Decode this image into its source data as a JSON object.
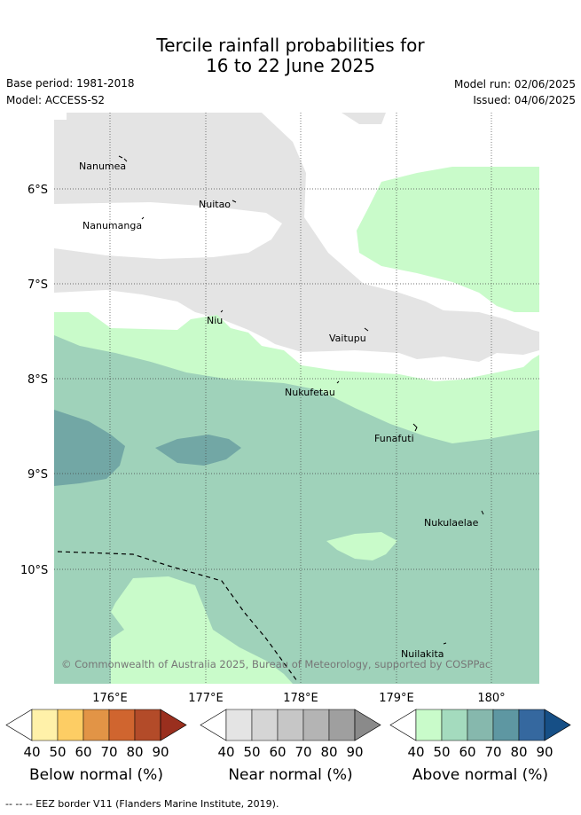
{
  "header": {
    "title_line1": "Tercile rainfall probabilities for",
    "title_line2": "16 to 22 June 2025",
    "base_period": "Base period: 1981-2018",
    "model": "Model: ACCESS-S2",
    "model_run": "Model run: 02/06/2025",
    "issued": "Issued: 04/06/2025"
  },
  "map": {
    "lat_labels": [
      "6°S",
      "7°S",
      "8°S",
      "9°S",
      "10°S"
    ],
    "lon_labels": [
      "176°E",
      "177°E",
      "178°E",
      "179°E",
      "180°"
    ],
    "places": [
      "Nanumea",
      "Nuitao",
      "Nanumanga",
      "Niu",
      "Vaitupu",
      "Nukufetau",
      "Funafuti",
      "Nukulaelae",
      "Nuilakita"
    ],
    "copyright": "© Commonwealth of Australia 2025, Bureau of Meteorology, supported by COSPPac",
    "colors": {
      "near_normal_40": "#e4e4e4",
      "above_normal_40": "#c9fbca",
      "above_normal_50": "#9fd2ba",
      "above_normal_60": "#72a7a5",
      "eez_border": "#000000"
    }
  },
  "colorbars": [
    {
      "name": "below",
      "title": "Below normal (%)",
      "ticks": [
        "40",
        "50",
        "60",
        "70",
        "80",
        "90"
      ],
      "colors": [
        "#fff1a9",
        "#fdcd64",
        "#e29446",
        "#d0652f",
        "#b34b29",
        "#9a2f1e"
      ]
    },
    {
      "name": "near",
      "title": "Near normal (%)",
      "ticks": [
        "40",
        "50",
        "60",
        "70",
        "80",
        "90"
      ],
      "colors": [
        "#e4e4e4",
        "#d5d5d5",
        "#c6c6c6",
        "#b4b4b4",
        "#9f9f9f",
        "#8a8a8a"
      ]
    },
    {
      "name": "above",
      "title": "Above normal (%)",
      "ticks": [
        "40",
        "50",
        "60",
        "70",
        "80",
        "90"
      ],
      "colors": [
        "#c9fbca",
        "#a4dbbe",
        "#86b8ad",
        "#5e97a2",
        "#35689f",
        "#164f86"
      ]
    }
  ],
  "footer": {
    "legend_text": "-- -- -- EEZ border V11 (Flanders Marine Institute, 2019)."
  }
}
